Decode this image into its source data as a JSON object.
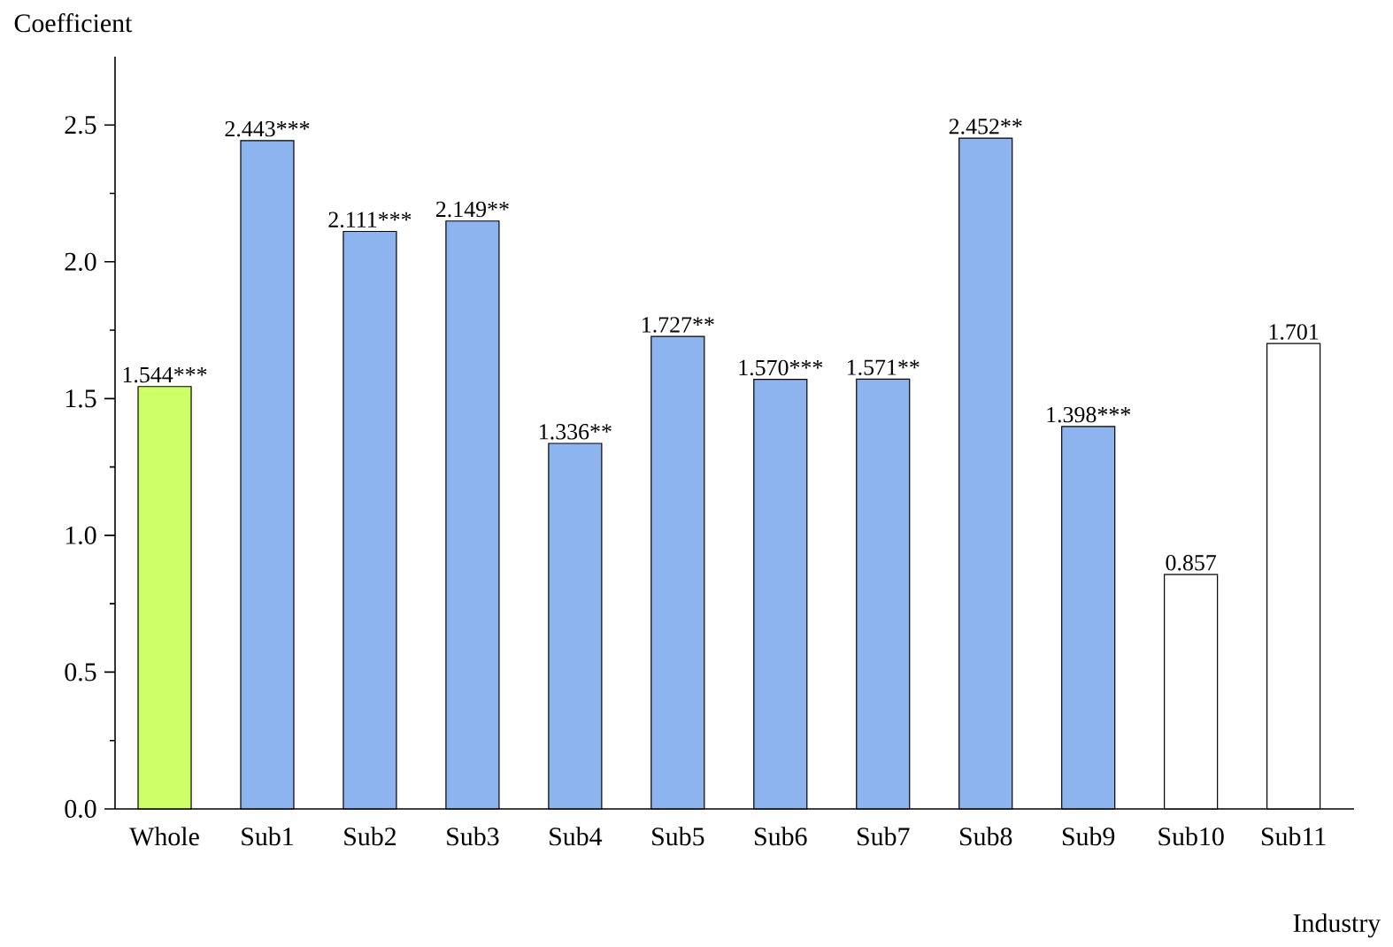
{
  "chart_data": {
    "type": "bar",
    "xlabel": "Industry",
    "ylabel": "Coefficient",
    "categories": [
      "Whole",
      "Sub1",
      "Sub2",
      "Sub3",
      "Sub4",
      "Sub5",
      "Sub6",
      "Sub7",
      "Sub8",
      "Sub9",
      "Sub10",
      "Sub11"
    ],
    "values": [
      1.544,
      2.443,
      2.111,
      2.149,
      1.336,
      1.727,
      1.57,
      1.571,
      2.452,
      1.398,
      0.857,
      1.701
    ],
    "value_labels": [
      "1.544***",
      "2.443***",
      "2.111***",
      "2.149**",
      "1.336**",
      "1.727**",
      "1.570***",
      "1.571**",
      "2.452**",
      "1.398***",
      "0.857",
      "1.701"
    ],
    "colors": [
      "#ccff66",
      "#8db4ef",
      "#8db4ef",
      "#8db4ef",
      "#8db4ef",
      "#8db4ef",
      "#8db4ef",
      "#8db4ef",
      "#8db4ef",
      "#8db4ef",
      "#ffffff",
      "#ffffff"
    ],
    "ylim": [
      0,
      2.75
    ],
    "yticks": [
      {
        "value": 0,
        "label": "0.0"
      },
      {
        "value": 0.5,
        "label": "0.5"
      },
      {
        "value": 1,
        "label": "1.0"
      },
      {
        "value": 1.5,
        "label": "1.5"
      },
      {
        "value": 2,
        "label": "2.0"
      },
      {
        "value": 2.5,
        "label": "2.5"
      }
    ]
  }
}
